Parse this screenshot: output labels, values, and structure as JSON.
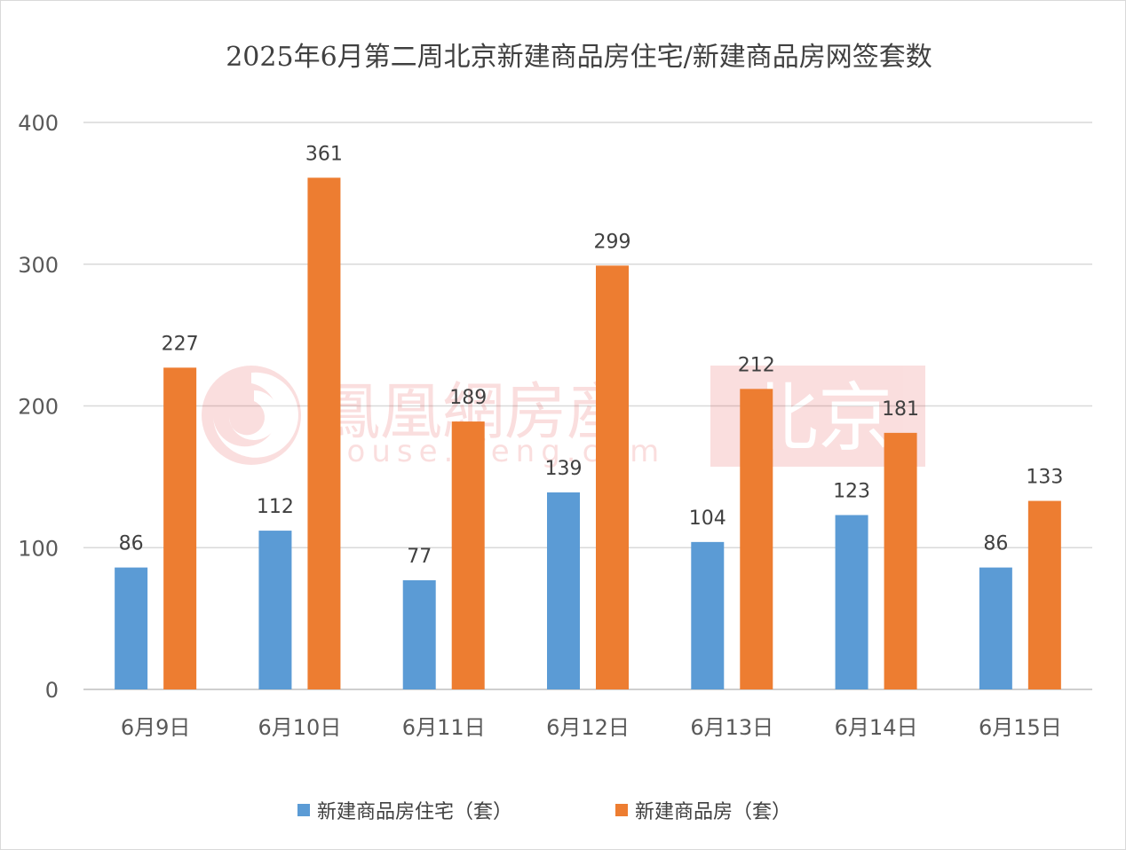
{
  "chart_data": {
    "type": "bar",
    "title": "2025年6月第二周北京新建商品房住宅/新建商品房网签套数",
    "categories": [
      "6月9日",
      "6月10日",
      "6月11日",
      "6月12日",
      "6月13日",
      "6月14日",
      "6月15日"
    ],
    "series": [
      {
        "name": "新建商品房住宅（套）",
        "color": "#5b9bd5",
        "values": [
          86,
          112,
          77,
          139,
          104,
          123,
          86
        ]
      },
      {
        "name": "新建商品房（套）",
        "color": "#ed7d31",
        "values": [
          227,
          361,
          189,
          299,
          212,
          181,
          133
        ]
      }
    ],
    "ylim": [
      0,
      400
    ],
    "yticks": [
      0,
      100,
      200,
      300,
      400
    ],
    "grid": true,
    "legend_position": "bottom",
    "data_labels": true
  },
  "watermark": {
    "brand": "鳳凰網房産",
    "url": "house.ifeng.com",
    "city": "北京",
    "color": "#e23a3a"
  }
}
